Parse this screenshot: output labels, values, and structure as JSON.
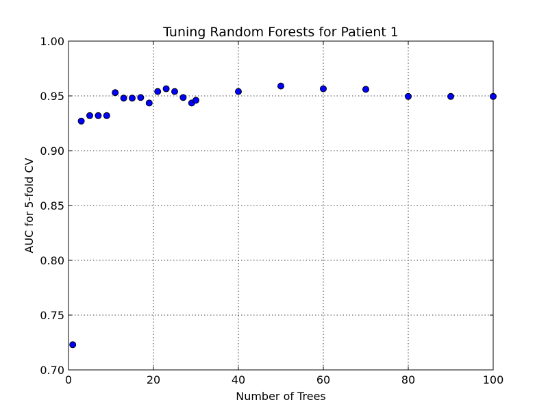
{
  "chart_data": {
    "type": "scatter",
    "title": "Tuning Random Forests for Patient 1",
    "xlabel": "Number of Trees",
    "ylabel": "AUC for 5-fold CV",
    "xlim": [
      0,
      100
    ],
    "ylim": [
      0.7,
      1.0
    ],
    "xticks": [
      0,
      20,
      40,
      60,
      80,
      100
    ],
    "xtick_labels": [
      "0",
      "20",
      "40",
      "60",
      "80",
      "100"
    ],
    "yticks": [
      0.7,
      0.75,
      0.8,
      0.85,
      0.9,
      0.95,
      1.0
    ],
    "ytick_labels": [
      "0.70",
      "0.75",
      "0.80",
      "0.85",
      "0.90",
      "0.95",
      "1.00"
    ],
    "grid": true,
    "marker_color": "#0000ff",
    "marker_edge_color": "#000000",
    "points": [
      {
        "x": 1,
        "y": 0.723
      },
      {
        "x": 3,
        "y": 0.927
      },
      {
        "x": 5,
        "y": 0.932
      },
      {
        "x": 7,
        "y": 0.932
      },
      {
        "x": 9,
        "y": 0.932
      },
      {
        "x": 11,
        "y": 0.953
      },
      {
        "x": 13,
        "y": 0.948
      },
      {
        "x": 15,
        "y": 0.948
      },
      {
        "x": 17,
        "y": 0.9485
      },
      {
        "x": 19,
        "y": 0.9435
      },
      {
        "x": 21,
        "y": 0.954
      },
      {
        "x": 23,
        "y": 0.9565
      },
      {
        "x": 25,
        "y": 0.954
      },
      {
        "x": 27,
        "y": 0.9485
      },
      {
        "x": 29,
        "y": 0.9435
      },
      {
        "x": 30,
        "y": 0.946
      },
      {
        "x": 40,
        "y": 0.954
      },
      {
        "x": 50,
        "y": 0.959
      },
      {
        "x": 60,
        "y": 0.9565
      },
      {
        "x": 70,
        "y": 0.956
      },
      {
        "x": 80,
        "y": 0.9495
      },
      {
        "x": 90,
        "y": 0.9495
      },
      {
        "x": 100,
        "y": 0.9495
      }
    ]
  }
}
